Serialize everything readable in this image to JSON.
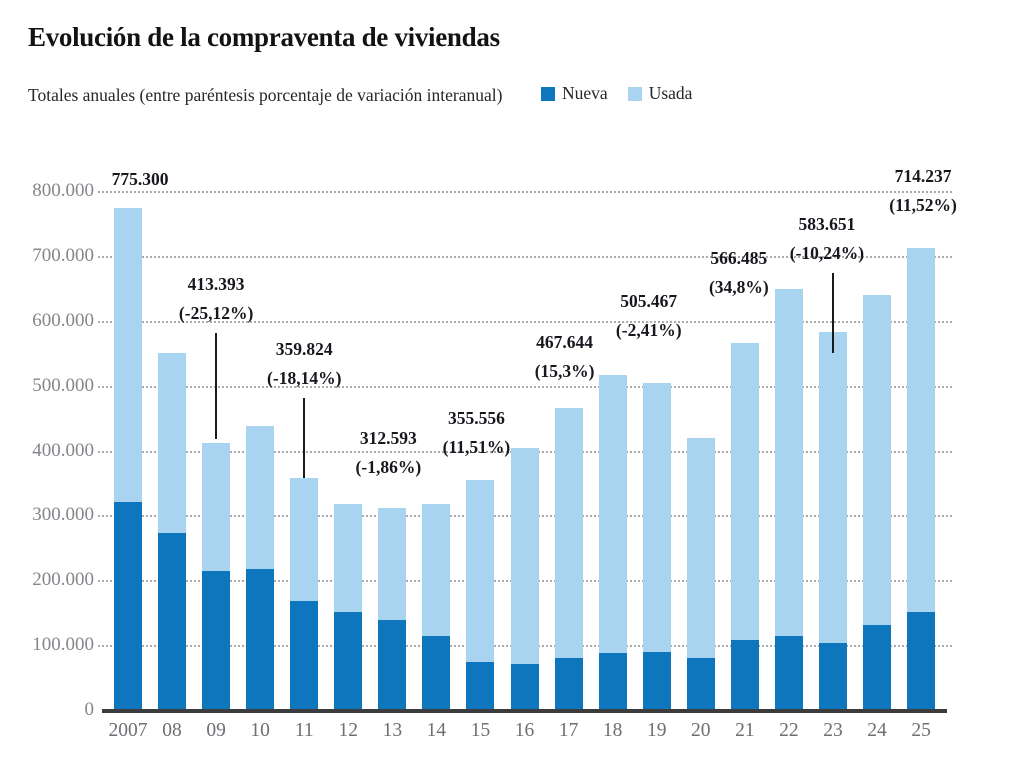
{
  "header": {
    "title": "Evolución de la compraventa de viviendas",
    "subtitle": "Totales anuales (entre paréntesis porcentaje de variación interanual)"
  },
  "colors": {
    "nueva": "#0e76bd",
    "usada": "#a9d4f0",
    "axis_line": "#3c3c3c",
    "grid": "#aaaaae",
    "annotation_text": "#17171e",
    "tick_text": "#85858b"
  },
  "chart_data": {
    "type": "bar",
    "stacked": true,
    "title": "Evolución de la compraventa de viviendas",
    "subtitle": "Totales anuales (entre paréntesis porcentaje de variación interanual)",
    "legend_position": "top-right",
    "grid": "dotted-horizontal",
    "categories": [
      "2007",
      "08",
      "09",
      "10",
      "11",
      "12",
      "13",
      "14",
      "15",
      "16",
      "17",
      "18",
      "19",
      "20",
      "21",
      "22",
      "23",
      "24",
      "25"
    ],
    "series": [
      {
        "name": "Nueva",
        "color": "#0e76bd",
        "values": [
          322000,
          274000,
          216000,
          219000,
          170000,
          153000,
          140000,
          116000,
          75000,
          72000,
          81000,
          89000,
          91000,
          82000,
          110000,
          115000,
          105000,
          133000,
          153000
        ]
      },
      {
        "name": "Usada",
        "color": "#a9d4f0",
        "values": [
          453300,
          278000,
          197393,
          220600,
          189824,
          165500,
          172593,
          202900,
          280556,
          333600,
          386644,
          429000,
          414467,
          338200,
          456485,
          535200,
          478651,
          507500,
          561237
        ]
      }
    ],
    "totals": [
      775300,
      552000,
      413393,
      439600,
      359824,
      318500,
      312593,
      318900,
      355556,
      405600,
      467644,
      518000,
      505467,
      420200,
      566485,
      650200,
      583651,
      640500,
      714237
    ],
    "y_axis": {
      "min": 0,
      "max": 800000,
      "tick_step": 100000,
      "tick_labels": [
        "800.000",
        "700.000",
        "600.000",
        "500.000",
        "400.000",
        "300.000",
        "200.000",
        "100.000",
        "0"
      ]
    },
    "annotations": [
      {
        "year": "2007",
        "value": "775.300",
        "pct": null,
        "connector": false,
        "gap": 14,
        "dx": 12,
        "overshoot": 0
      },
      {
        "year": "09",
        "value": "413.393",
        "pct": "(-25,12%)",
        "connector": true,
        "gap": 115,
        "dx": 0,
        "overshoot": -4
      },
      {
        "year": "11",
        "value": "359.824",
        "pct": "(-18,14%)",
        "connector": true,
        "gap": 85,
        "dx": 0,
        "overshoot": 0
      },
      {
        "year": "13",
        "value": "312.593",
        "pct": "(-1,86%)",
        "connector": false,
        "gap": 26,
        "dx": -4,
        "overshoot": 0
      },
      {
        "year": "15",
        "value": "355.556",
        "pct": "(11,51%)",
        "connector": false,
        "gap": 18,
        "dx": -4,
        "overshoot": 0
      },
      {
        "year": "17",
        "value": "467.644",
        "pct": "(15,3%)",
        "connector": false,
        "gap": 22,
        "dx": -4,
        "overshoot": 0
      },
      {
        "year": "19",
        "value": "505.467",
        "pct": "(-2,41%)",
        "connector": false,
        "gap": 38,
        "dx": -8,
        "overshoot": 0
      },
      {
        "year": "21",
        "value": "566.485",
        "pct": "(34,8%)",
        "connector": false,
        "gap": 41,
        "dx": -6,
        "overshoot": 0
      },
      {
        "year": "23",
        "value": "583.651",
        "pct": "(-10,24%)",
        "connector": true,
        "gap": 64,
        "dx": -6,
        "overshoot": 21
      },
      {
        "year": "25",
        "value": "714.237",
        "pct": "(11,52%)",
        "connector": false,
        "gap": 28,
        "dx": 2,
        "overshoot": 0
      }
    ]
  }
}
